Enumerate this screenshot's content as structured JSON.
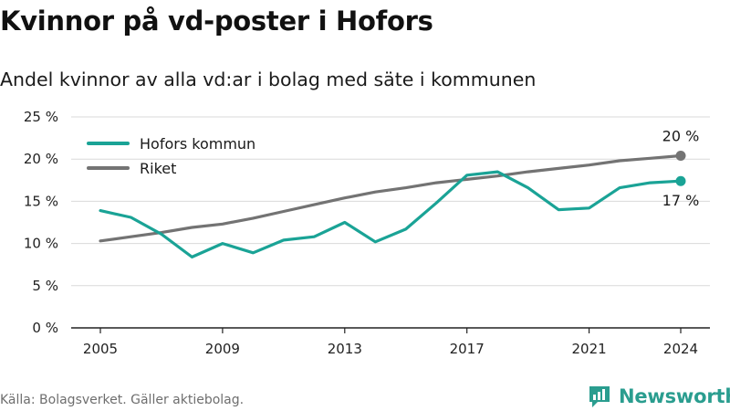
{
  "header": {
    "title": "Kvinnor på vd-poster i Hofors",
    "subtitle": "Andel kvinnor av alla vd:ar i bolag med säte i kommunen"
  },
  "footer": {
    "source": "Källa: Bolagsverket. Gäller aktiebolag.",
    "brand": "Newsworthy"
  },
  "colors": {
    "hofors": "#1aa396",
    "riket": "#737373",
    "grid": "#d9d9d9",
    "axis": "#222222",
    "brand": "#2a9d8f"
  },
  "chart_data": {
    "type": "line",
    "title": "Kvinnor på vd-poster i Hofors",
    "subtitle": "Andel kvinnor av alla vd:ar i bolag med säte i kommunen",
    "xlim": [
      2005,
      2024
    ],
    "ylim": [
      0,
      25
    ],
    "y_ticks": [
      0,
      5,
      10,
      15,
      20,
      25
    ],
    "y_tick_labels": [
      "0 %",
      "5 %",
      "10 %",
      "15 %",
      "20 %",
      "25 %"
    ],
    "x_ticks": [
      2005,
      2009,
      2013,
      2017,
      2021,
      2024
    ],
    "x_tick_labels": [
      "2005",
      "2009",
      "2013",
      "2017",
      "2021",
      "2024"
    ],
    "grid": "horizontal",
    "legend_position": "top-left",
    "x": [
      2005,
      2006,
      2007,
      2008,
      2009,
      2010,
      2011,
      2012,
      2013,
      2014,
      2015,
      2016,
      2017,
      2018,
      2019,
      2020,
      2021,
      2022,
      2023,
      2024
    ],
    "series": [
      {
        "name": "Hofors kommun",
        "color": "#1aa396",
        "values": [
          13.9,
          13.1,
          11.1,
          8.4,
          10.0,
          8.9,
          10.4,
          10.8,
          12.5,
          10.2,
          11.7,
          14.8,
          18.1,
          18.5,
          16.6,
          14.0,
          14.2,
          16.6,
          17.2,
          17.4
        ],
        "end_label": "17 %"
      },
      {
        "name": "Riket",
        "color": "#737373",
        "values": [
          10.3,
          10.8,
          11.3,
          11.9,
          12.3,
          13.0,
          13.8,
          14.6,
          15.4,
          16.1,
          16.6,
          17.2,
          17.6,
          18.0,
          18.5,
          18.9,
          19.3,
          19.8,
          20.1,
          20.4
        ],
        "end_label": "20 %"
      }
    ]
  }
}
